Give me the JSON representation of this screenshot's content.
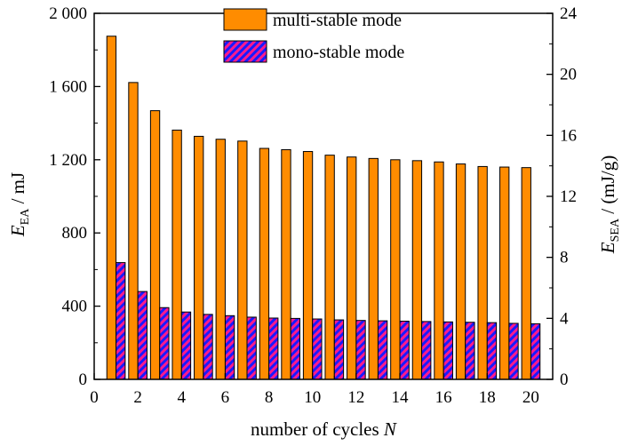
{
  "chart_data": {
    "type": "bar",
    "x": [
      1,
      2,
      3,
      4,
      5,
      6,
      7,
      8,
      9,
      10,
      11,
      12,
      13,
      14,
      15,
      16,
      17,
      18,
      19,
      20
    ],
    "xlim": [
      0,
      21
    ],
    "xticks": [
      0,
      2,
      4,
      6,
      8,
      10,
      12,
      14,
      16,
      18,
      20
    ],
    "xlabel": "number of cycles",
    "xlabel_var": "N",
    "ylabel_left": {
      "var": "E",
      "sub": "EA",
      "unit": " / mJ"
    },
    "ylabel_right": {
      "var": "E",
      "sub": "SEA",
      "unit": " / (mJ/g)"
    },
    "ylim_left": [
      0,
      2000
    ],
    "ylim_right": [
      0,
      24
    ],
    "yticks_left": [
      0,
      400,
      800,
      1200,
      1600,
      2000
    ],
    "yticks_left_labels": [
      "0",
      "400",
      "800",
      "1 200",
      "1 600",
      "2 000"
    ],
    "yticks_right": [
      0,
      4,
      8,
      12,
      16,
      20,
      24
    ],
    "legend_position": "top-center",
    "series": [
      {
        "name": "multi-stable mode",
        "color": "#FF8C00",
        "pattern": "solid",
        "values": [
          1875,
          1622,
          1468,
          1362,
          1328,
          1312,
          1302,
          1262,
          1255,
          1245,
          1225,
          1215,
          1207,
          1200,
          1195,
          1188,
          1177,
          1163,
          1160,
          1157
        ]
      },
      {
        "name": "mono-stable mode",
        "color": "#0000FF",
        "hatch_color": "#FF1493",
        "pattern": "hatched",
        "values": [
          638,
          480,
          392,
          368,
          355,
          348,
          340,
          335,
          333,
          330,
          325,
          322,
          320,
          318,
          316,
          314,
          312,
          310,
          306,
          304
        ]
      }
    ]
  }
}
